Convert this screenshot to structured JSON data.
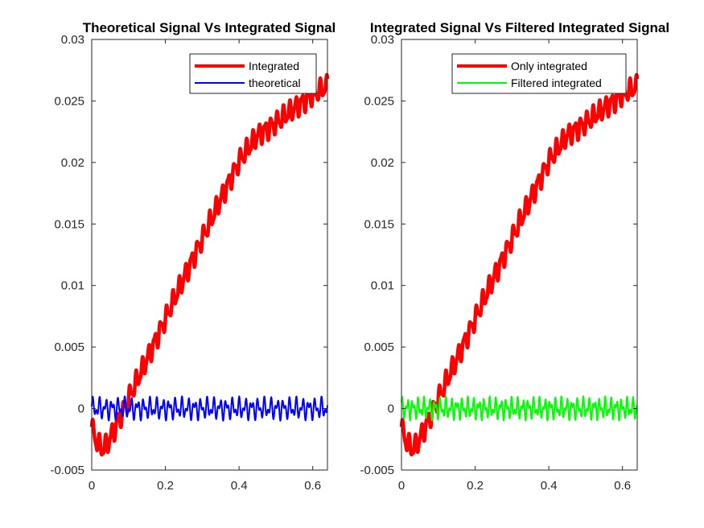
{
  "chart_data": [
    {
      "type": "line",
      "title": "Theoretical Signal Vs Integrated Signal",
      "xlabel": "",
      "ylabel": "",
      "xlim": [
        0,
        0.64
      ],
      "ylim": [
        -0.005,
        0.03
      ],
      "xticks": [
        0,
        0.2,
        0.4,
        0.6
      ],
      "xtick_labels": [
        "0",
        "0.2",
        "0.4",
        "0.6"
      ],
      "yticks": [
        -0.005,
        0,
        0.005,
        0.01,
        0.015,
        0.02,
        0.025,
        0.03
      ],
      "ytick_labels": [
        "-0.005",
        "0",
        "0.005",
        "0.01",
        "0.015",
        "0.02",
        "0.025",
        "0.03"
      ],
      "grid": false,
      "legend_position": "top-right",
      "series": [
        {
          "name": "Integrated",
          "color": "#ff0000",
          "x": [
            0,
            0.01,
            0.02,
            0.03,
            0.04,
            0.06,
            0.08,
            0.1,
            0.15,
            0.2,
            0.25,
            0.3,
            0.35,
            0.4,
            0.45,
            0.5,
            0.55,
            0.6,
            0.64
          ],
          "y": [
            -0.0015,
            -0.0025,
            -0.003,
            -0.0033,
            -0.003,
            -0.0018,
            -0.0005,
            0.0008,
            0.004,
            0.0073,
            0.0106,
            0.0138,
            0.017,
            0.0201,
            0.0222,
            0.0232,
            0.0244,
            0.0255,
            0.0262
          ]
        },
        {
          "name": "theoretical",
          "color": "#0000ff",
          "x": [
            0,
            0.64
          ],
          "y": [
            0,
            0
          ],
          "oscillation_amplitude": 0.001
        }
      ]
    },
    {
      "type": "line",
      "title": "Integrated Signal Vs Filtered Integrated Signal",
      "xlabel": "",
      "ylabel": "",
      "xlim": [
        0,
        0.64
      ],
      "ylim": [
        -0.005,
        0.03
      ],
      "xticks": [
        0,
        0.2,
        0.4,
        0.6
      ],
      "xtick_labels": [
        "0",
        "0.2",
        "0.4",
        "0.6"
      ],
      "yticks": [
        -0.005,
        0,
        0.005,
        0.01,
        0.015,
        0.02,
        0.025,
        0.03
      ],
      "ytick_labels": [
        "-0.005",
        "0",
        "0.005",
        "0.01",
        "0.015",
        "0.02",
        "0.025",
        "0.03"
      ],
      "grid": false,
      "legend_position": "top-right",
      "series": [
        {
          "name": "Only integrated",
          "color": "#ff0000",
          "x": [
            0,
            0.01,
            0.02,
            0.03,
            0.04,
            0.06,
            0.08,
            0.1,
            0.15,
            0.2,
            0.25,
            0.3,
            0.35,
            0.4,
            0.45,
            0.5,
            0.55,
            0.6,
            0.64
          ],
          "y": [
            -0.0015,
            -0.0025,
            -0.003,
            -0.0033,
            -0.003,
            -0.0018,
            -0.0005,
            0.0008,
            0.004,
            0.0073,
            0.0106,
            0.0138,
            0.017,
            0.0201,
            0.0222,
            0.0232,
            0.0244,
            0.0255,
            0.0262
          ]
        },
        {
          "name": "Filtered integrated",
          "color": "#00ff00",
          "x": [
            0,
            0.64
          ],
          "y": [
            0,
            0
          ],
          "oscillation_amplitude": 0.001
        }
      ]
    }
  ]
}
